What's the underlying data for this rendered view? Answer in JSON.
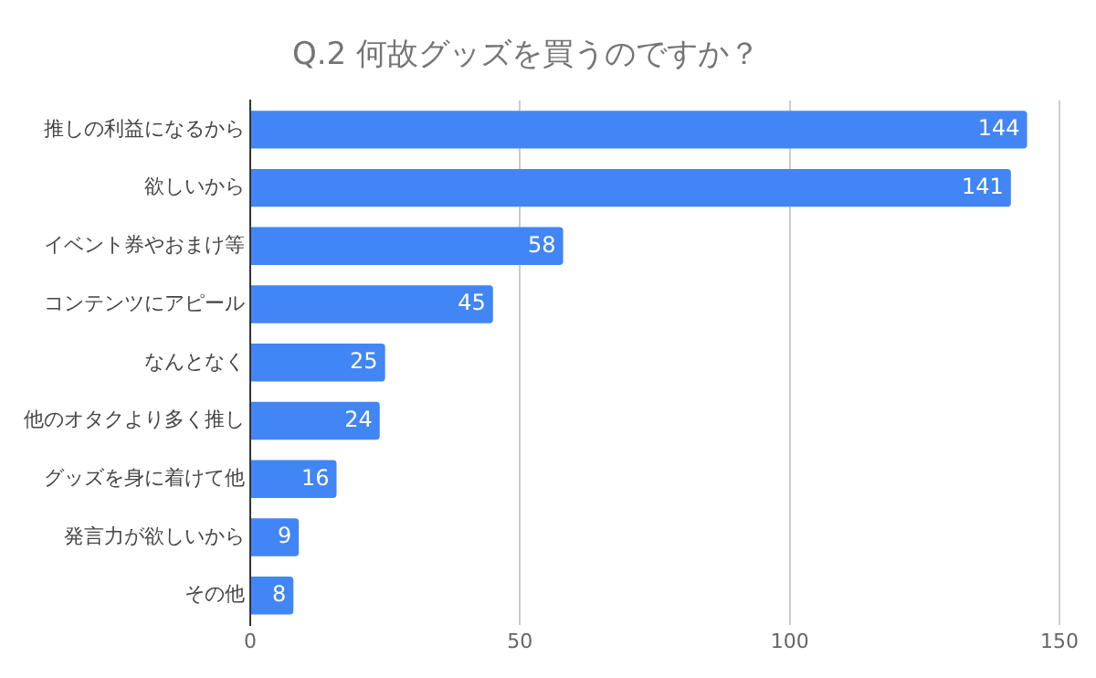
{
  "chart_data": {
    "type": "bar",
    "orientation": "horizontal",
    "title": "Q.2  何故グッズを買うのですか？",
    "categories": [
      "推しの利益になるから",
      "欲しいから",
      "イベント券やおまけ等",
      "コンテンツにアピール",
      "なんとなく",
      "他のオタクより多く推し",
      "グッズを身に着けて他",
      "発言力が欲しいから",
      "その他"
    ],
    "values": [
      144,
      141,
      58,
      45,
      25,
      24,
      16,
      9,
      8
    ],
    "color": "#4285f4",
    "xlim": [
      0,
      150
    ],
    "xticks": [
      0,
      50,
      100,
      150
    ],
    "grid": "x",
    "data_labels": true,
    "legend": false
  }
}
